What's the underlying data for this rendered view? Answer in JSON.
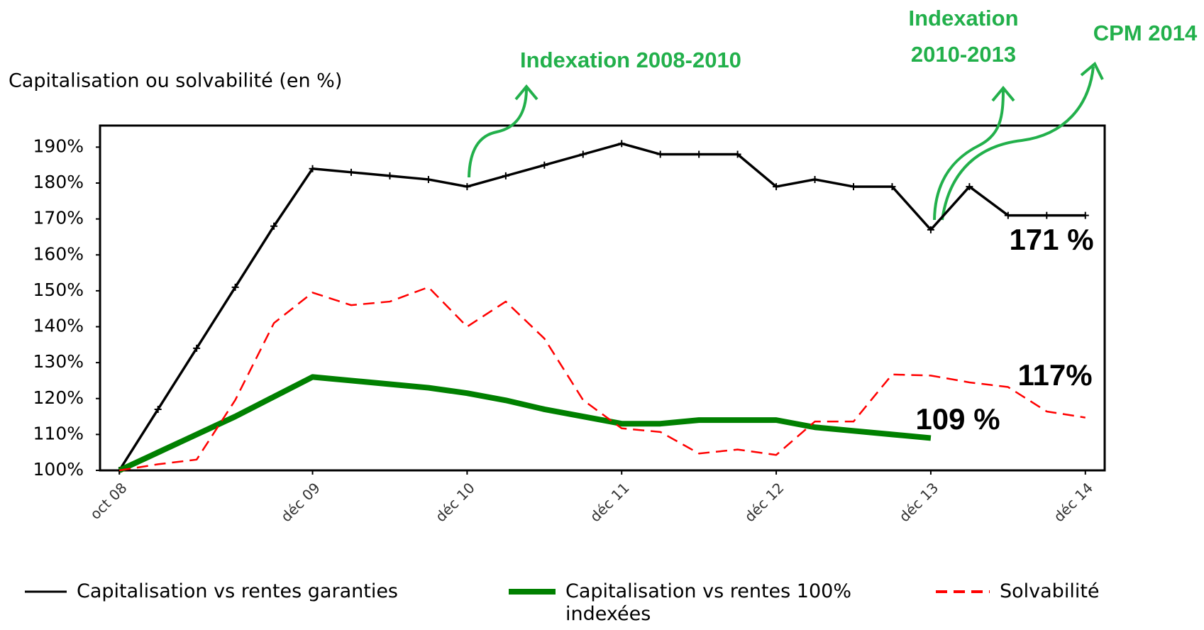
{
  "chart_data": {
    "type": "line",
    "title": "Capitalisation ou solvabilité (en %)",
    "x": [
      0,
      1,
      2,
      3,
      4,
      5,
      6,
      7,
      8,
      9,
      10,
      11,
      12,
      13,
      14,
      15,
      16,
      17,
      18,
      19,
      20,
      21,
      22,
      23,
      24,
      25
    ],
    "xlim": [
      -0.5,
      25.5
    ],
    "xticks": [
      {
        "value": 0,
        "label": "oct 08"
      },
      {
        "value": 5,
        "label": "déc 09"
      },
      {
        "value": 9,
        "label": "déc 10"
      },
      {
        "value": 13,
        "label": "déc 11"
      },
      {
        "value": 17,
        "label": "déc 12"
      },
      {
        "value": 21,
        "label": "déc 13"
      },
      {
        "value": 25,
        "label": "déc 14"
      }
    ],
    "ylim": [
      100,
      196
    ],
    "yticks": [
      {
        "value": 100,
        "label": "100%"
      },
      {
        "value": 110,
        "label": "110%"
      },
      {
        "value": 120,
        "label": "120%"
      },
      {
        "value": 130,
        "label": "130%"
      },
      {
        "value": 140,
        "label": "140%"
      },
      {
        "value": 150,
        "label": "150%"
      },
      {
        "value": 160,
        "label": "160%"
      },
      {
        "value": 170,
        "label": "170%"
      },
      {
        "value": 180,
        "label": "180%"
      },
      {
        "value": 190,
        "label": "190%"
      }
    ],
    "series": [
      {
        "name": "Capitalisation vs rentes garanties",
        "color": "#000000",
        "style": "markers",
        "values": [
          100,
          117,
          134,
          151,
          168,
          184,
          183,
          182,
          181,
          179,
          182,
          185,
          188,
          191,
          188,
          188,
          188,
          179,
          181,
          179,
          179,
          167,
          179,
          171,
          171,
          171
        ]
      },
      {
        "name": "Capitalisation vs rentes 100% indexées",
        "color": "#008000",
        "style": "thick",
        "values": [
          100,
          105,
          110,
          115,
          120.5,
          126,
          125,
          124,
          123,
          121.5,
          119.5,
          117,
          115,
          113,
          113,
          114,
          114,
          114,
          112,
          111,
          110,
          109,
          null,
          null,
          null,
          null
        ]
      },
      {
        "name": "Solvabilité",
        "color": "#ff0000",
        "style": "dashed",
        "values": [
          100,
          101.7,
          103,
          119.6,
          141,
          149.5,
          146,
          147,
          151,
          140,
          147,
          136.7,
          119.6,
          111.7,
          110.7,
          104.7,
          105.8,
          104.3,
          113.6,
          113.6,
          126.7,
          126.4,
          124.5,
          123.2,
          116.4,
          114.7
        ]
      }
    ],
    "annotations": [
      {
        "lines": [
          "Indexation 2008-2010"
        ],
        "color": "#22b04b"
      },
      {
        "lines": [
          "Indexation",
          "2010-2013"
        ],
        "color": "#22b04b"
      },
      {
        "lines": [
          "CPM 2014"
        ],
        "color": "#22b04b"
      },
      {
        "lines": [
          "171 %"
        ],
        "color": "#000000"
      },
      {
        "lines": [
          "117%"
        ],
        "color": "#000000"
      },
      {
        "lines": [
          "109 %"
        ],
        "color": "#000000"
      }
    ]
  }
}
